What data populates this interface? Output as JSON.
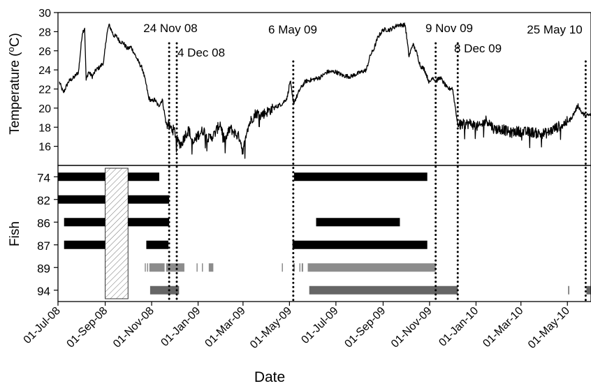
{
  "chart_data": [
    {
      "type": "line",
      "ylabel": "Temperature (°C)",
      "ylabel_main": "Temperature (",
      "ylabel_sup": "o",
      "ylabel_tail": "C)",
      "ylim": [
        14,
        30
      ],
      "yticks": [
        16,
        18,
        20,
        22,
        24,
        26,
        28,
        30
      ],
      "xlim": [
        "2008-07-01",
        "2010-06-01"
      ],
      "series": [
        {
          "color": "#000000",
          "x": [
            "2008-07-03",
            "2008-07-08",
            "2008-07-15",
            "2008-07-22",
            "2008-07-28",
            "2008-08-02",
            "2008-08-05",
            "2008-08-07",
            "2008-08-10",
            "2008-08-15",
            "2008-08-20",
            "2008-08-25",
            "2008-08-30",
            "2008-09-03",
            "2008-09-06",
            "2008-09-09",
            "2008-09-12",
            "2008-09-16",
            "2008-09-20",
            "2008-09-25",
            "2008-09-30",
            "2008-10-05",
            "2008-10-10",
            "2008-10-15",
            "2008-10-20",
            "2008-10-25",
            "2008-10-28",
            "2008-11-01",
            "2008-11-05",
            "2008-11-10",
            "2008-11-15",
            "2008-11-20",
            "2008-11-25",
            "2008-12-01",
            "2008-12-05",
            "2008-12-10",
            "2008-12-15",
            "2008-12-20",
            "2008-12-25",
            "2009-01-01",
            "2009-01-08",
            "2009-01-15",
            "2009-01-22",
            "2009-01-30",
            "2009-02-05",
            "2009-02-12",
            "2009-02-18",
            "2009-02-25",
            "2009-03-01",
            "2009-03-06",
            "2009-03-12",
            "2009-03-18",
            "2009-03-25",
            "2009-04-01",
            "2009-04-08",
            "2009-04-15",
            "2009-04-22",
            "2009-04-28",
            "2009-05-02",
            "2009-05-06",
            "2009-05-10",
            "2009-05-15",
            "2009-05-22",
            "2009-06-01",
            "2009-06-10",
            "2009-06-20",
            "2009-07-01",
            "2009-07-10",
            "2009-07-20",
            "2009-08-01",
            "2009-08-10",
            "2009-08-15",
            "2009-08-20",
            "2009-08-25",
            "2009-09-01",
            "2009-09-10",
            "2009-09-20",
            "2009-09-30",
            "2009-10-05",
            "2009-10-10",
            "2009-10-15",
            "2009-10-20",
            "2009-10-25",
            "2009-11-01",
            "2009-11-05",
            "2009-11-09",
            "2009-11-15",
            "2009-11-20",
            "2009-11-25",
            "2009-12-01",
            "2009-12-05",
            "2009-12-08",
            "2009-12-15",
            "2009-12-25",
            "2010-01-05",
            "2010-01-15",
            "2010-01-25",
            "2010-02-05",
            "2010-02-15",
            "2010-02-25",
            "2010-03-05",
            "2010-03-15",
            "2010-03-25",
            "2010-04-05",
            "2010-04-15",
            "2010-04-25",
            "2010-05-05",
            "2010-05-10",
            "2010-05-15",
            "2010-05-20",
            "2010-05-25",
            "2010-06-01"
          ],
          "y": [
            22.7,
            21.6,
            22.8,
            23.2,
            23.8,
            27.9,
            28.4,
            22.9,
            23.8,
            23.3,
            24.0,
            24.3,
            24.8,
            27.7,
            28.7,
            28.2,
            27.6,
            27.5,
            27.0,
            26.8,
            26.2,
            26.4,
            25.6,
            24.8,
            24.1,
            22.4,
            21.1,
            20.7,
            20.9,
            20.2,
            20.9,
            18.4,
            18.0,
            17.6,
            16.5,
            16.2,
            17.2,
            17.7,
            16.2,
            17.2,
            17.7,
            16.8,
            17.2,
            18.4,
            16.5,
            17.9,
            17.4,
            16.9,
            15.3,
            17.8,
            18.8,
            19.5,
            19.3,
            19.6,
            19.9,
            20.2,
            20.5,
            21.1,
            22.9,
            20.5,
            21.1,
            22.0,
            22.8,
            23.0,
            23.2,
            23.8,
            23.8,
            23.4,
            23.3,
            23.7,
            24.0,
            25.5,
            26.2,
            27.4,
            28.2,
            28.2,
            28.7,
            28.7,
            25.4,
            26.7,
            25.8,
            24.4,
            24.1,
            22.6,
            23.3,
            22.8,
            23.2,
            22.6,
            22.0,
            22.1,
            20.0,
            18.2,
            18.3,
            18.4,
            18.0,
            18.8,
            17.8,
            17.8,
            17.4,
            17.6,
            17.5,
            17.5,
            17.3,
            17.4,
            17.9,
            18.3,
            18.8,
            19.5,
            20.3,
            19.5,
            19.2,
            19.3
          ]
        }
      ],
      "annotations": [
        {
          "date": "2008-11-24",
          "label": "24 Nov 08"
        },
        {
          "date": "2008-12-04",
          "label": "4 Dec 08"
        },
        {
          "date": "2009-05-06",
          "label": "6 May 09"
        },
        {
          "date": "2009-11-09",
          "label": "9 Nov 09"
        },
        {
          "date": "2009-12-08",
          "label": "8 Dec 09"
        },
        {
          "date": "2010-05-25",
          "label": "25 May 10"
        }
      ]
    },
    {
      "type": "gantt",
      "xlabel": "Date",
      "ylabel": "Fish",
      "xticks": [
        "01-Jul-08",
        "01-Sep-08",
        "01-Nov-08",
        "01-Jan-09",
        "01-Mar-09",
        "01-May-09",
        "01-Jul-09",
        "01-Sep-09",
        "01-Nov-09",
        "01-Jan-10",
        "01-Mar-10",
        "01-May-10"
      ],
      "hatched_period": {
        "start": "2008-09-01",
        "end": "2008-10-01"
      },
      "fish": [
        {
          "id": "74",
          "color": "#000000",
          "segments": [
            [
              "2008-07-01",
              "2008-09-01"
            ],
            [
              "2008-10-01",
              "2008-11-11"
            ],
            [
              "2009-05-07",
              "2009-10-29"
            ]
          ]
        },
        {
          "id": "82",
          "color": "#000000",
          "segments": [
            [
              "2008-07-01",
              "2008-09-01"
            ],
            [
              "2008-10-01",
              "2008-11-24"
            ]
          ]
        },
        {
          "id": "86",
          "color": "#000000",
          "segments": [
            [
              "2008-07-09",
              "2008-09-01"
            ],
            [
              "2008-10-01",
              "2008-11-24"
            ],
            [
              "2009-06-05",
              "2009-09-23"
            ]
          ]
        },
        {
          "id": "87",
          "color": "#000000",
          "segments": [
            [
              "2008-07-09",
              "2008-09-01"
            ],
            [
              "2008-10-25",
              "2008-11-23"
            ],
            [
              "2009-05-05",
              "2009-10-29"
            ]
          ]
        },
        {
          "id": "89",
          "color": "#8c8c8c",
          "segments": [
            [
              "2008-10-23",
              "2008-10-24"
            ],
            [
              "2008-10-26",
              "2008-10-27"
            ],
            [
              "2008-10-29",
              "2008-11-18"
            ],
            [
              "2008-11-20",
              "2008-12-14"
            ],
            [
              "2008-12-30",
              "2008-12-31"
            ],
            [
              "2009-01-06",
              "2009-01-07"
            ],
            [
              "2009-01-15",
              "2009-01-21"
            ],
            [
              "2009-04-21",
              "2009-04-22"
            ],
            [
              "2009-05-06",
              "2009-05-08"
            ],
            [
              "2009-05-14",
              "2009-05-15"
            ],
            [
              "2009-05-17",
              "2009-05-19"
            ],
            [
              "2009-05-25",
              "2009-11-09"
            ]
          ]
        },
        {
          "id": "94",
          "color": "#666666",
          "segments": [
            [
              "2008-10-30",
              "2008-12-07"
            ],
            [
              "2009-05-27",
              "2009-12-08"
            ],
            [
              "2010-05-02",
              "2010-05-03"
            ],
            [
              "2010-05-26",
              "2010-06-01"
            ]
          ]
        }
      ]
    }
  ]
}
